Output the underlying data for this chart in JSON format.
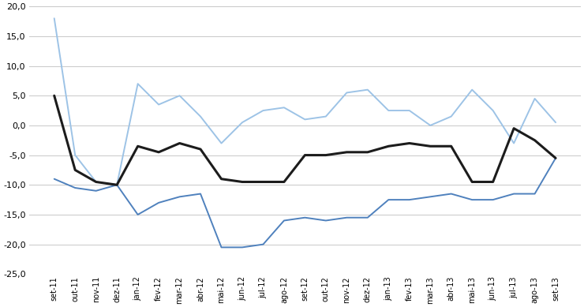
{
  "x_labels": [
    "set-11",
    "out-11",
    "nov-11",
    "dez-11",
    "jan-12",
    "fev-12",
    "mar-12",
    "abr-12",
    "mai-12",
    "jun-12",
    "jul-12",
    "ago-12",
    "set-12",
    "out-12",
    "nov-12",
    "dez-12",
    "jan-13",
    "fev-13",
    "mar-13",
    "abr-13",
    "mai-13",
    "jun-13",
    "jul-13",
    "ago-13",
    "set-13"
  ],
  "series_dark": [
    5.0,
    -7.5,
    -9.5,
    -10.0,
    -3.5,
    -4.5,
    -3.0,
    -4.0,
    -9.0,
    -9.5,
    -9.5,
    -9.5,
    -5.0,
    -5.0,
    -4.5,
    -4.5,
    -3.5,
    -3.0,
    -3.5,
    -3.5,
    -9.5,
    -9.5,
    -0.5,
    -2.5,
    -5.5
  ],
  "series_medium": [
    -9.0,
    -10.5,
    -11.0,
    -10.0,
    -15.0,
    -13.0,
    -12.0,
    -11.5,
    -20.5,
    -20.5,
    -20.0,
    -16.0,
    -15.5,
    -16.0,
    -15.5,
    -15.5,
    -12.5,
    -12.5,
    -12.0,
    -11.5,
    -12.5,
    -12.5,
    -11.5,
    -11.5,
    -5.5
  ],
  "series_light": [
    18.0,
    -5.0,
    -9.5,
    -10.0,
    7.0,
    3.5,
    5.0,
    1.5,
    -3.0,
    0.5,
    2.5,
    3.0,
    1.0,
    1.5,
    5.5,
    6.0,
    2.5,
    2.5,
    0.0,
    1.5,
    6.0,
    2.5,
    -3.0,
    4.5,
    0.5
  ],
  "color_dark": "#1c1c1c",
  "color_medium": "#4f81bd",
  "color_light": "#9dc3e6",
  "ylim": [
    -25.0,
    20.0
  ],
  "yticks": [
    -25.0,
    -20.0,
    -15.0,
    -10.0,
    -5.0,
    0.0,
    5.0,
    10.0,
    15.0,
    20.0
  ],
  "background_color": "#ffffff",
  "grid_color": "#c8c8c8"
}
